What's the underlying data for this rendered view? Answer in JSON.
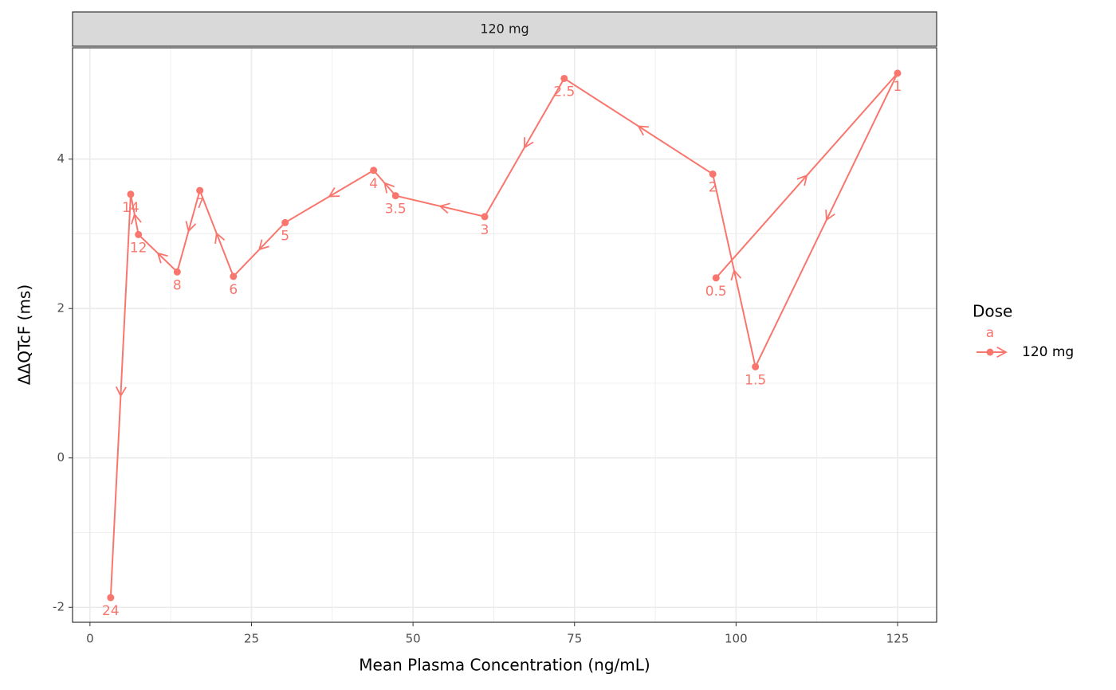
{
  "chart_data": {
    "type": "line",
    "facet": "120 mg",
    "x_label": "Mean Plasma Concentration (ng/mL)",
    "y_label": "ΔΔQTcF (ms)",
    "legend_title": "Dose",
    "legend_key_label": "a",
    "x": [
      96.9,
      125.0,
      103.0,
      96.4,
      73.4,
      61.1,
      47.3,
      43.9,
      30.2,
      22.2,
      17.0,
      13.5,
      7.5,
      6.3,
      3.2
    ],
    "series": [
      {
        "name": "120 mg",
        "color": "#F8766D",
        "values": [
          2.41,
          5.15,
          1.22,
          3.8,
          5.08,
          3.23,
          3.51,
          3.85,
          3.15,
          2.43,
          3.58,
          2.49,
          2.99,
          3.53,
          -1.87
        ],
        "point_labels": [
          "0.5",
          "1",
          "1.5",
          "2",
          "2.5",
          "3",
          "3.5",
          "4",
          "5",
          "6",
          "7",
          "8",
          "12",
          "14",
          "24"
        ]
      }
    ],
    "xlim": [
      -2.7,
      131.05
    ],
    "ylim": [
      -2.2,
      5.49
    ],
    "xticks": [
      0,
      25,
      50,
      75,
      100,
      125
    ],
    "yticks": [
      -2,
      0,
      2,
      4
    ],
    "grid": true,
    "legend": "right"
  }
}
